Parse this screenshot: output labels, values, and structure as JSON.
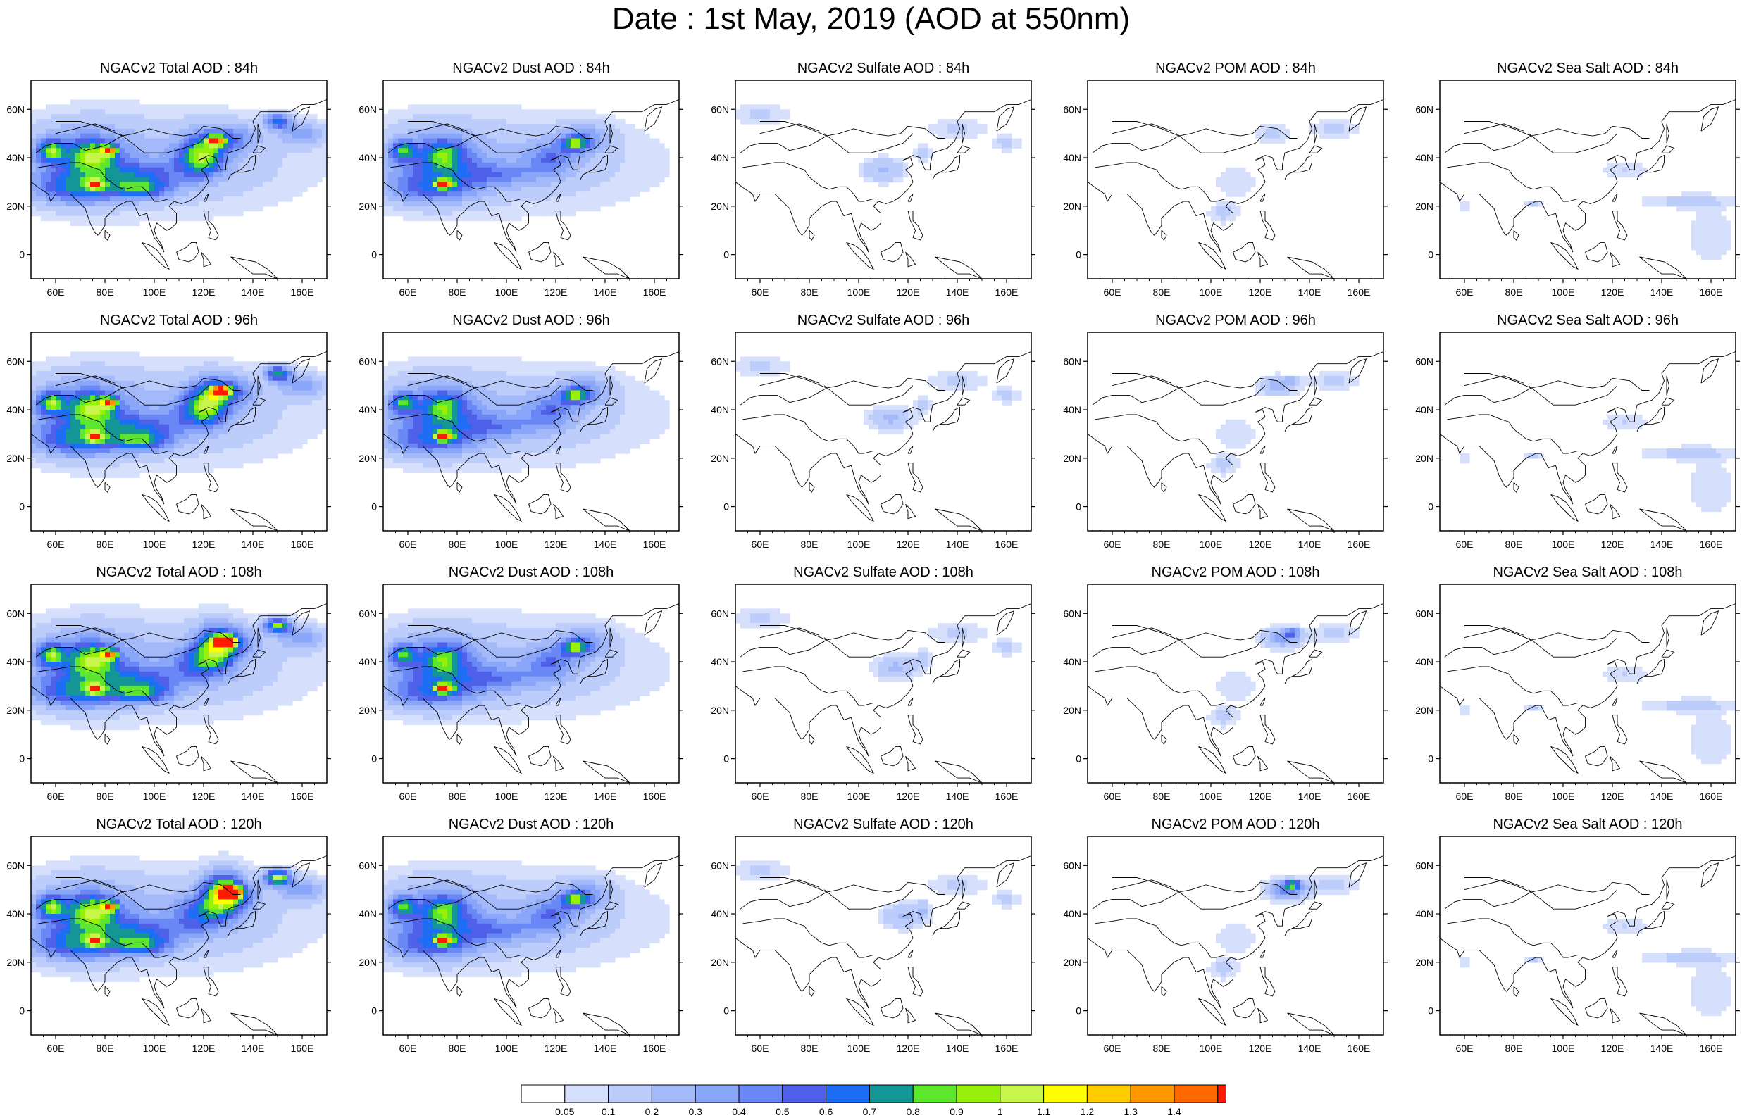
{
  "title": "Date : 1st May, 2019 (AOD at 550nm)",
  "axes": {
    "lat_ticks": [
      "60N",
      "40N",
      "20N",
      "0"
    ],
    "lon_ticks": [
      "60E",
      "80E",
      "100E",
      "120E",
      "140E",
      "160E"
    ]
  },
  "panels": [
    {
      "title": "NGACv2 Total AOD : 84h",
      "species": "total",
      "lead_hours": 84
    },
    {
      "title": "NGACv2 Dust AOD : 84h",
      "species": "dust",
      "lead_hours": 84
    },
    {
      "title": "NGACv2 Sulfate AOD : 84h",
      "species": "sulfate",
      "lead_hours": 84
    },
    {
      "title": "NGACv2 POM AOD : 84h",
      "species": "pom",
      "lead_hours": 84
    },
    {
      "title": "NGACv2 Sea Salt AOD : 84h",
      "species": "seasalt",
      "lead_hours": 84
    },
    {
      "title": "NGACv2 Total AOD : 96h",
      "species": "total",
      "lead_hours": 96
    },
    {
      "title": "NGACv2 Dust AOD : 96h",
      "species": "dust",
      "lead_hours": 96
    },
    {
      "title": "NGACv2 Sulfate AOD : 96h",
      "species": "sulfate",
      "lead_hours": 96
    },
    {
      "title": "NGACv2 POM AOD : 96h",
      "species": "pom",
      "lead_hours": 96
    },
    {
      "title": "NGACv2 Sea Salt AOD : 96h",
      "species": "seasalt",
      "lead_hours": 96
    },
    {
      "title": "NGACv2 Total AOD : 108h",
      "species": "total",
      "lead_hours": 108
    },
    {
      "title": "NGACv2 Dust AOD : 108h",
      "species": "dust",
      "lead_hours": 108
    },
    {
      "title": "NGACv2 Sulfate AOD : 108h",
      "species": "sulfate",
      "lead_hours": 108
    },
    {
      "title": "NGACv2 POM AOD : 108h",
      "species": "pom",
      "lead_hours": 108
    },
    {
      "title": "NGACv2 Sea Salt AOD : 108h",
      "species": "seasalt",
      "lead_hours": 108
    },
    {
      "title": "NGACv2 Total AOD : 120h",
      "species": "total",
      "lead_hours": 120
    },
    {
      "title": "NGACv2 Dust AOD : 120h",
      "species": "dust",
      "lead_hours": 120
    },
    {
      "title": "NGACv2 Sulfate AOD : 120h",
      "species": "sulfate",
      "lead_hours": 120
    },
    {
      "title": "NGACv2 POM AOD : 120h",
      "species": "pom",
      "lead_hours": 120
    },
    {
      "title": "NGACv2 Sea Salt  AOD : 120h",
      "species": "seasalt",
      "lead_hours": 120
    }
  ],
  "colorbar": {
    "labels": [
      "0.05",
      "0.1",
      "0.2",
      "0.3",
      "0.4",
      "0.5",
      "0.6",
      "0.7",
      "0.8",
      "0.9",
      "1",
      "1.1",
      "1.2",
      "1.3",
      "1.4"
    ],
    "colors": [
      "#ffffff",
      "#d6e0fc",
      "#bccdfb",
      "#a3b9fa",
      "#8aa6f8",
      "#6a88f5",
      "#4e61e8",
      "#1e6ef5",
      "#159696",
      "#5ce62e",
      "#97f00a",
      "#c8f54a",
      "#ffff00",
      "#ffcc00",
      "#ff9900",
      "#ff6a00",
      "#ff1a00"
    ]
  }
}
